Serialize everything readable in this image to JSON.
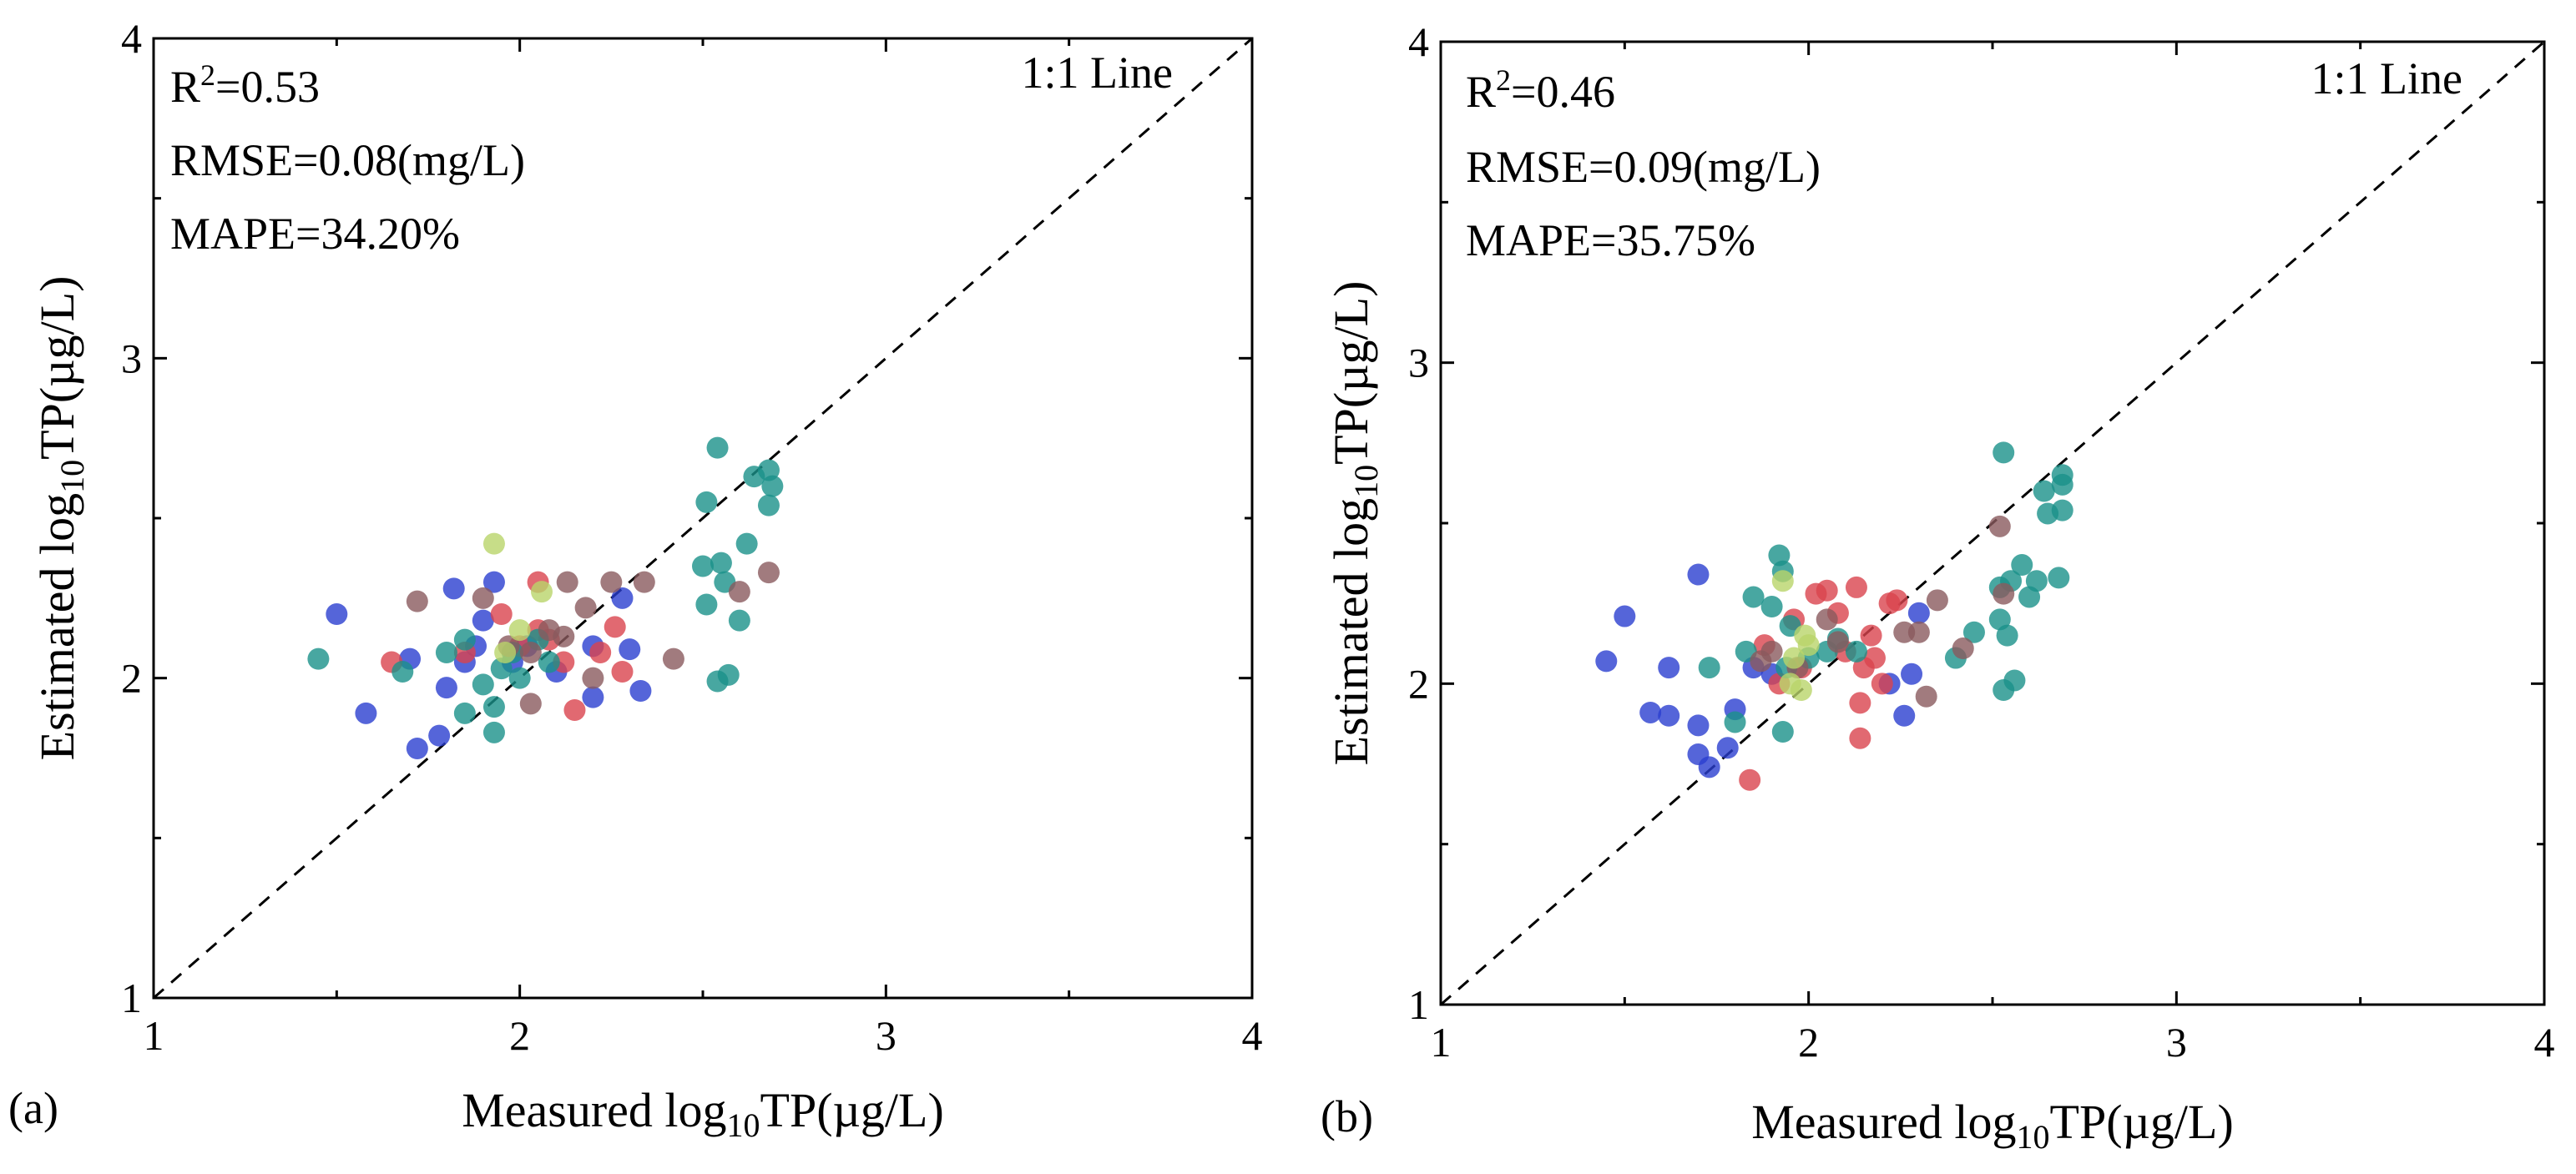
{
  "chart_data": [
    {
      "type": "scatter",
      "panel_label": "(a)",
      "xlabel": {
        "prefix": "Measured log",
        "sub": "10",
        "suffix": "TP(µg/L)"
      },
      "ylabel": {
        "prefix": "Estimated log",
        "sub": "10",
        "suffix": "TP(µg/L)"
      },
      "xlim": [
        1,
        4
      ],
      "ylim": [
        1,
        4
      ],
      "xticks": [
        "1",
        "2",
        "3",
        "4"
      ],
      "yticks": [
        "1",
        "2",
        "3",
        "4"
      ],
      "reference_line": {
        "label": "1:1 Line",
        "from": [
          1,
          1
        ],
        "to": [
          4,
          4
        ]
      },
      "stats": {
        "r2_prefix": "R",
        "r2_sup": "2",
        "r2_value": "=0.53",
        "rmse": "RMSE=0.08(mg/L)",
        "mape": "MAPE=34.20%"
      },
      "series": [
        {
          "name": "blue",
          "color": "#2b3fcf",
          "points": [
            [
              1.5,
              2.2
            ],
            [
              1.58,
              1.89
            ],
            [
              1.7,
              2.06
            ],
            [
              1.72,
              1.78
            ],
            [
              1.78,
              1.82
            ],
            [
              1.8,
              1.97
            ],
            [
              1.82,
              2.28
            ],
            [
              1.88,
              2.1
            ],
            [
              1.93,
              2.3
            ],
            [
              1.9,
              2.18
            ],
            [
              1.98,
              2.05
            ],
            [
              2.02,
              2.1
            ],
            [
              2.2,
              2.1
            ],
            [
              2.28,
              2.25
            ],
            [
              2.3,
              2.09
            ],
            [
              2.33,
              1.96
            ],
            [
              2.2,
              1.94
            ],
            [
              1.85,
              2.05
            ],
            [
              2.1,
              2.02
            ]
          ]
        },
        {
          "name": "red",
          "color": "#d9434d",
          "points": [
            [
              1.65,
              2.05
            ],
            [
              1.85,
              2.08
            ],
            [
              1.95,
              2.2
            ],
            [
              2.0,
              2.1
            ],
            [
              2.05,
              2.3
            ],
            [
              2.08,
              2.12
            ],
            [
              2.12,
              2.05
            ],
            [
              2.15,
              1.9
            ],
            [
              2.22,
              2.08
            ],
            [
              2.26,
              2.16
            ],
            [
              2.28,
              2.02
            ],
            [
              2.05,
              2.15
            ]
          ]
        },
        {
          "name": "teal",
          "color": "#1a9189",
          "points": [
            [
              1.45,
              2.06
            ],
            [
              1.68,
              2.02
            ],
            [
              1.8,
              2.08
            ],
            [
              1.85,
              1.89
            ],
            [
              1.9,
              1.98
            ],
            [
              1.93,
              1.91
            ],
            [
              1.95,
              2.03
            ],
            [
              1.98,
              2.08
            ],
            [
              2.0,
              2.0
            ],
            [
              2.05,
              2.12
            ],
            [
              2.08,
              2.05
            ],
            [
              1.85,
              2.12
            ],
            [
              1.93,
              1.83
            ],
            [
              2.5,
              2.35
            ],
            [
              2.51,
              2.55
            ],
            [
              2.51,
              2.23
            ],
            [
              2.54,
              2.72
            ],
            [
              2.55,
              2.36
            ],
            [
              2.56,
              2.3
            ],
            [
              2.57,
              2.01
            ],
            [
              2.54,
              1.99
            ],
            [
              2.6,
              2.18
            ],
            [
              2.62,
              2.42
            ],
            [
              2.64,
              2.63
            ],
            [
              2.68,
              2.54
            ],
            [
              2.69,
              2.6
            ],
            [
              2.68,
              2.65
            ]
          ]
        },
        {
          "name": "brown",
          "color": "#8a5a5e",
          "points": [
            [
              1.72,
              2.24
            ],
            [
              1.9,
              2.25
            ],
            [
              2.03,
              2.08
            ],
            [
              2.08,
              2.15
            ],
            [
              2.12,
              2.13
            ],
            [
              2.18,
              2.22
            ],
            [
              2.2,
              2.0
            ],
            [
              2.25,
              2.3
            ],
            [
              2.34,
              2.3
            ],
            [
              2.42,
              2.06
            ],
            [
              2.6,
              2.27
            ],
            [
              2.68,
              2.33
            ],
            [
              2.13,
              2.3
            ],
            [
              2.03,
              1.92
            ],
            [
              1.97,
              2.1
            ]
          ]
        },
        {
          "name": "lime",
          "color": "#b9d46a",
          "points": [
            [
              1.93,
              2.42
            ],
            [
              2.0,
              2.15
            ],
            [
              2.06,
              2.27
            ],
            [
              1.96,
              2.08
            ]
          ]
        }
      ]
    },
    {
      "type": "scatter",
      "panel_label": "(b)",
      "xlabel": {
        "prefix": "Measured log",
        "sub": "10",
        "suffix": "TP(µg/L)"
      },
      "ylabel": {
        "prefix": "Estimated log",
        "sub": "10",
        "suffix": "TP(µg/L)"
      },
      "xlim": [
        1,
        4
      ],
      "ylim": [
        1,
        4
      ],
      "xticks": [
        "1",
        "2",
        "3",
        "4"
      ],
      "yticks": [
        "1",
        "2",
        "3",
        "4"
      ],
      "reference_line": {
        "label": "1:1 Line",
        "from": [
          1,
          1
        ],
        "to": [
          4,
          4
        ]
      },
      "stats": {
        "r2_prefix": "R",
        "r2_sup": "2",
        "r2_value": "=0.46",
        "rmse": "RMSE=0.09(mg/L)",
        "mape": "MAPE=35.75%"
      },
      "series": [
        {
          "name": "blue",
          "color": "#2b3fcf",
          "points": [
            [
              1.45,
              2.07
            ],
            [
              1.5,
              2.21
            ],
            [
              1.57,
              1.91
            ],
            [
              1.62,
              1.9
            ],
            [
              1.62,
              2.05
            ],
            [
              1.7,
              1.87
            ],
            [
              1.7,
              1.78
            ],
            [
              1.7,
              2.34
            ],
            [
              1.73,
              1.74
            ],
            [
              1.78,
              1.8
            ],
            [
              1.8,
              1.92
            ],
            [
              1.85,
              2.05
            ],
            [
              1.9,
              2.03
            ],
            [
              2.22,
              2.0
            ],
            [
              2.26,
              1.9
            ],
            [
              2.28,
              2.03
            ],
            [
              2.3,
              2.22
            ]
          ]
        },
        {
          "name": "red",
          "color": "#d9434d",
          "points": [
            [
              1.84,
              1.7
            ],
            [
              1.88,
              2.12
            ],
            [
              1.92,
              2.0
            ],
            [
              1.96,
              2.2
            ],
            [
              2.02,
              2.28
            ],
            [
              2.05,
              2.29
            ],
            [
              2.08,
              2.22
            ],
            [
              2.1,
              2.1
            ],
            [
              2.13,
              2.3
            ],
            [
              2.14,
              1.94
            ],
            [
              2.15,
              2.05
            ],
            [
              2.17,
              2.15
            ],
            [
              2.18,
              2.08
            ],
            [
              2.2,
              2.0
            ],
            [
              2.22,
              2.25
            ],
            [
              2.24,
              2.26
            ],
            [
              1.98,
              2.05
            ],
            [
              2.14,
              1.83
            ]
          ]
        },
        {
          "name": "teal",
          "color": "#1a9189",
          "points": [
            [
              1.73,
              2.05
            ],
            [
              1.8,
              1.88
            ],
            [
              1.83,
              2.1
            ],
            [
              1.85,
              2.27
            ],
            [
              1.9,
              2.24
            ],
            [
              1.92,
              2.4
            ],
            [
              1.93,
              2.35
            ],
            [
              1.93,
              1.85
            ],
            [
              1.94,
              2.05
            ],
            [
              1.95,
              2.18
            ],
            [
              2.0,
              2.08
            ],
            [
              2.05,
              2.1
            ],
            [
              2.08,
              2.14
            ],
            [
              2.13,
              2.1
            ],
            [
              2.4,
              2.08
            ],
            [
              2.45,
              2.16
            ],
            [
              2.52,
              2.2
            ],
            [
              2.52,
              2.3
            ],
            [
              2.53,
              2.72
            ],
            [
              2.54,
              2.15
            ],
            [
              2.55,
              2.32
            ],
            [
              2.56,
              2.01
            ],
            [
              2.53,
              1.98
            ],
            [
              2.58,
              2.37
            ],
            [
              2.6,
              2.27
            ],
            [
              2.62,
              2.32
            ],
            [
              2.64,
              2.6
            ],
            [
              2.65,
              2.53
            ],
            [
              2.68,
              2.33
            ],
            [
              2.69,
              2.54
            ],
            [
              2.69,
              2.62
            ],
            [
              2.69,
              2.65
            ]
          ]
        },
        {
          "name": "brown",
          "color": "#8a5a5e",
          "points": [
            [
              1.87,
              2.07
            ],
            [
              1.9,
              2.1
            ],
            [
              1.97,
              2.05
            ],
            [
              2.05,
              2.2
            ],
            [
              2.08,
              2.13
            ],
            [
              2.26,
              2.16
            ],
            [
              2.3,
              2.16
            ],
            [
              2.32,
              1.96
            ],
            [
              2.35,
              2.26
            ],
            [
              2.42,
              2.11
            ],
            [
              2.52,
              2.49
            ],
            [
              2.53,
              2.28
            ]
          ]
        },
        {
          "name": "lime",
          "color": "#b9d46a",
          "points": [
            [
              1.93,
              2.32
            ],
            [
              1.96,
              2.08
            ],
            [
              1.98,
              1.98
            ],
            [
              2.0,
              2.12
            ],
            [
              1.99,
              2.15
            ],
            [
              1.95,
              2.0
            ]
          ]
        }
      ]
    }
  ]
}
